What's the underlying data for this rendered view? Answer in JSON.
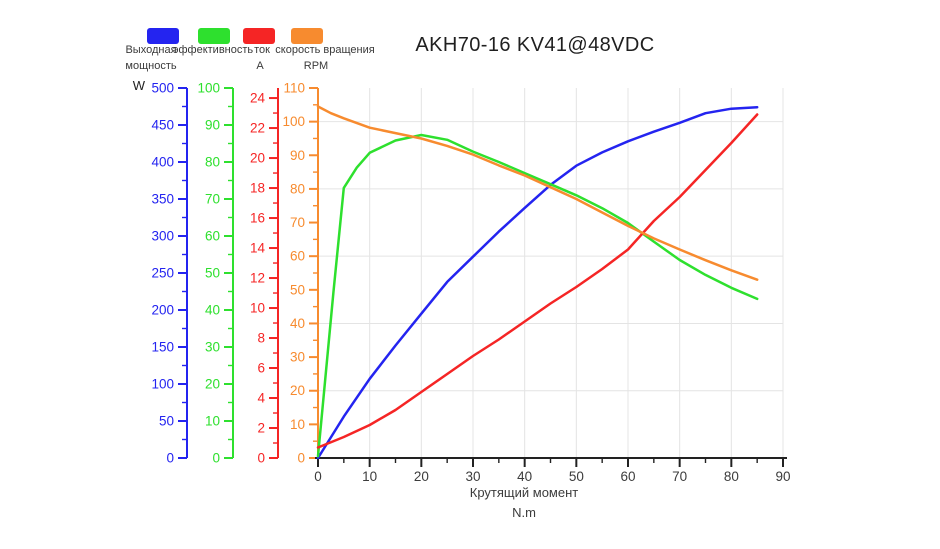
{
  "chart_data": {
    "type": "line",
    "title": "AKH70-16 KV41@48VDC",
    "x_axis": {
      "label": "Крутящий момент",
      "unit": "N.m",
      "min": 0,
      "max": 90,
      "tick_step": 10,
      "minor_step": 5,
      "axis_color": "#222222",
      "label_color": "#3c3c3c"
    },
    "y_axes": [
      {
        "id": "power",
        "name": "Выходная мощность",
        "unit": "W",
        "color": "#2424f0",
        "min": 0,
        "max": 500,
        "tick_step": 50,
        "minor_step": 25
      },
      {
        "id": "efficiency",
        "name": "эффективность",
        "unit": "",
        "color": "#2ee02e",
        "min": 0,
        "max": 100,
        "tick_step": 10,
        "minor_step": 5
      },
      {
        "id": "current",
        "name": "ток",
        "unit": "A",
        "color": "#f52525",
        "min": 0,
        "max": 24.67,
        "tick_step": 2,
        "minor_step": 1,
        "tick_max": 24
      },
      {
        "id": "rpm",
        "name": "скорость вращения",
        "unit": "RPM",
        "color": "#f78b2f",
        "min": 0,
        "max": 110,
        "tick_step": 10,
        "minor_step": 5
      }
    ],
    "grid": {
      "color": "#e4e4e4",
      "vertical_step_nm": 10,
      "horizontal_axis": "rpm",
      "horizontal_step": 20
    },
    "legend": [
      {
        "id": "power",
        "line1": "Выходная",
        "line2": "мощность",
        "color": "#2424f0"
      },
      {
        "id": "efficiency",
        "line1": "эффективность",
        "line2": "",
        "color": "#2ee02e"
      },
      {
        "id": "current",
        "line1": "ток",
        "line2": "A",
        "color": "#f52525"
      },
      {
        "id": "rpm",
        "line1": "скорость вращения",
        "line2": "RPM",
        "color": "#f78b2f"
      }
    ],
    "series": [
      {
        "id": "power",
        "name": "Выходная мощность",
        "axis": "power",
        "unit": "W",
        "color": "#2424f0",
        "points": [
          [
            0,
            0
          ],
          [
            5,
            56
          ],
          [
            10,
            107
          ],
          [
            15,
            152
          ],
          [
            20,
            195
          ],
          [
            25,
            238
          ],
          [
            30,
            272
          ],
          [
            35,
            306
          ],
          [
            40,
            338
          ],
          [
            45,
            369
          ],
          [
            50,
            395
          ],
          [
            55,
            413
          ],
          [
            60,
            428
          ],
          [
            65,
            441
          ],
          [
            70,
            453
          ],
          [
            75,
            466
          ],
          [
            80,
            472
          ],
          [
            85,
            474
          ]
        ]
      },
      {
        "id": "efficiency",
        "name": "эффективность",
        "axis": "efficiency",
        "color": "#2ee02e",
        "points": [
          [
            0,
            0.5
          ],
          [
            3,
            45
          ],
          [
            5,
            73
          ],
          [
            7.5,
            78.5
          ],
          [
            10,
            82.5
          ],
          [
            15,
            85.8
          ],
          [
            20,
            87.3
          ],
          [
            25,
            86
          ],
          [
            30,
            82.8
          ],
          [
            35,
            80
          ],
          [
            40,
            77
          ],
          [
            45,
            74
          ],
          [
            50,
            71
          ],
          [
            55,
            67.5
          ],
          [
            60,
            63.5
          ],
          [
            65,
            58.5
          ],
          [
            70,
            53.5
          ],
          [
            75,
            49.5
          ],
          [
            80,
            46
          ],
          [
            85,
            43
          ]
        ]
      },
      {
        "id": "current",
        "name": "ток",
        "axis": "current",
        "unit": "A",
        "color": "#f52525",
        "points": [
          [
            0,
            0.7
          ],
          [
            5,
            1.4
          ],
          [
            10,
            2.2
          ],
          [
            15,
            3.2
          ],
          [
            20,
            4.4
          ],
          [
            25,
            5.6
          ],
          [
            30,
            6.8
          ],
          [
            35,
            7.9
          ],
          [
            40,
            9.1
          ],
          [
            45,
            10.3
          ],
          [
            50,
            11.4
          ],
          [
            55,
            12.6
          ],
          [
            60,
            13.9
          ],
          [
            65,
            15.8
          ],
          [
            70,
            17.4
          ],
          [
            75,
            19.2
          ],
          [
            80,
            21.0
          ],
          [
            85,
            22.9
          ]
        ]
      },
      {
        "id": "rpm",
        "name": "скорость вращения",
        "axis": "rpm",
        "unit": "RPM",
        "color": "#f78b2f",
        "points": [
          [
            0,
            104.5
          ],
          [
            2.5,
            102.5
          ],
          [
            5,
            101
          ],
          [
            10,
            98.2
          ],
          [
            15,
            96.6
          ],
          [
            20,
            95
          ],
          [
            25,
            92.8
          ],
          [
            30,
            90.2
          ],
          [
            35,
            87
          ],
          [
            40,
            84
          ],
          [
            45,
            80.5
          ],
          [
            50,
            77
          ],
          [
            55,
            73
          ],
          [
            60,
            69
          ],
          [
            65,
            65.3
          ],
          [
            70,
            62
          ],
          [
            75,
            58.8
          ],
          [
            80,
            55.8
          ],
          [
            85,
            53
          ]
        ]
      }
    ]
  }
}
